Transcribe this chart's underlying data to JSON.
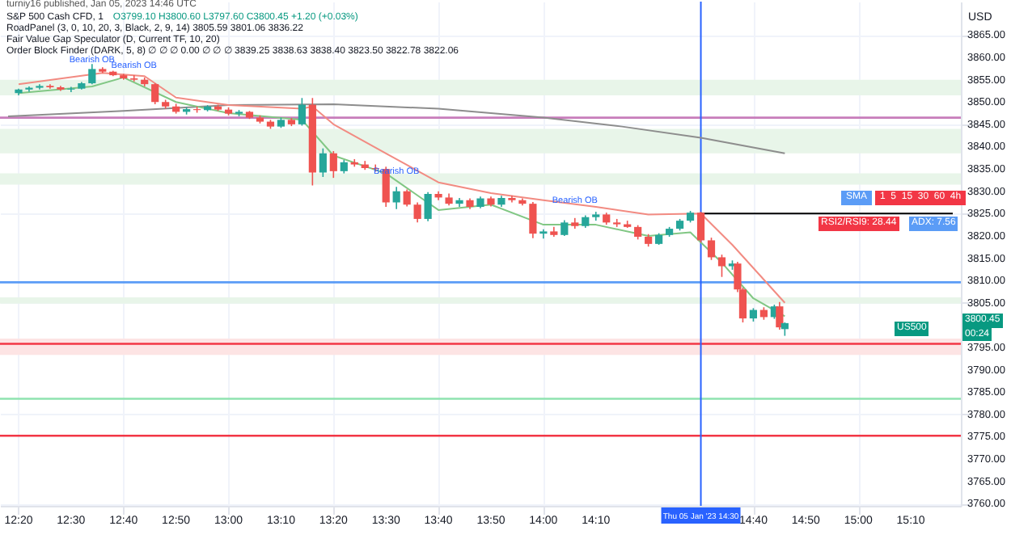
{
  "chart_data": {
    "type": "candlestick",
    "title": "S&P 500 Cash CFD, 1",
    "subtitle": "O3799.10 H3800.60 L3797.60 C3800.45 +1.20 (+0.03%)",
    "ylabel": "USD",
    "annotations": [
      "turniy16 published, Jan 05, 2023 14:46 UTC",
      "RoadPanel (3, 0, 10, 20, 3, Black, 2, 9, 14) 3805.59 3801.06 3836.22",
      "Fair Value Gap Speculator (D, Current TF, 10, 20)",
      "Order Block Finder (DARK, 5, 8) ∅ ∅ ∅ 0.00 ∅ ∅ ∅ 3839.25 3838.63 3838.40 3823.50 3822.78 3822.06",
      "SMA",
      "1  5  15  30  60  4h",
      "RSI2/RSI9: 28.44",
      "ADX: 7.56",
      "US500",
      "3800.45",
      "00:24",
      {
        "text": "Bearish OB",
        "x": "2023-01-05T12:34",
        "y": 3858.6
      },
      {
        "text": "Bearish OB",
        "x": "2023-01-05T12:42",
        "y": 3857.2
      },
      {
        "text": "Bearish OB",
        "x": "2023-01-05T13:32",
        "y": 3833.5
      },
      {
        "text": "Bearish OB",
        "x": "2023-01-05T14:06",
        "y": 3827
      }
    ],
    "x": [
      "2023-01-05T12:20",
      "2023-01-05T12:22",
      "2023-01-05T12:24",
      "2023-01-05T12:26",
      "2023-01-05T12:28",
      "2023-01-05T12:30",
      "2023-01-05T12:32",
      "2023-01-05T12:34",
      "2023-01-05T12:36",
      "2023-01-05T12:38",
      "2023-01-05T12:40",
      "2023-01-05T12:42",
      "2023-01-05T12:44",
      "2023-01-05T12:46",
      "2023-01-05T12:48",
      "2023-01-05T12:50",
      "2023-01-05T12:52",
      "2023-01-05T12:54",
      "2023-01-05T12:56",
      "2023-01-05T12:58",
      "2023-01-05T13:00",
      "2023-01-05T13:02",
      "2023-01-05T13:04",
      "2023-01-05T13:06",
      "2023-01-05T13:08",
      "2023-01-05T13:10",
      "2023-01-05T13:12",
      "2023-01-05T13:14",
      "2023-01-05T13:16",
      "2023-01-05T13:18",
      "2023-01-05T13:20",
      "2023-01-05T13:22",
      "2023-01-05T13:24",
      "2023-01-05T13:26",
      "2023-01-05T13:28",
      "2023-01-05T13:30",
      "2023-01-05T13:32",
      "2023-01-05T13:34",
      "2023-01-05T13:36",
      "2023-01-05T13:38",
      "2023-01-05T13:40",
      "2023-01-05T13:42",
      "2023-01-05T13:44",
      "2023-01-05T13:46",
      "2023-01-05T13:48",
      "2023-01-05T13:50",
      "2023-01-05T13:52",
      "2023-01-05T13:54",
      "2023-01-05T13:56",
      "2023-01-05T13:58",
      "2023-01-05T14:00",
      "2023-01-05T14:02",
      "2023-01-05T14:04",
      "2023-01-05T14:06",
      "2023-01-05T14:08",
      "2023-01-05T14:10",
      "2023-01-05T14:12",
      "2023-01-05T14:14",
      "2023-01-05T14:16",
      "2023-01-05T14:18",
      "2023-01-05T14:20",
      "2023-01-05T14:22",
      "2023-01-05T14:24",
      "2023-01-05T14:26",
      "2023-01-05T14:28",
      "2023-01-05T14:30",
      "2023-01-05T14:32",
      "2023-01-05T14:34",
      "2023-01-05T14:36",
      "2023-01-05T14:37",
      "2023-01-05T14:38",
      "2023-01-05T14:40",
      "2023-01-05T14:42",
      "2023-01-05T14:44",
      "2023-01-05T14:45",
      "2023-01-05T14:46"
    ],
    "ohlc": [
      [
        3852,
        3853,
        3851.5,
        3852.8
      ],
      [
        3852.8,
        3853.5,
        3852.3,
        3853.2
      ],
      [
        3853.2,
        3854,
        3852.8,
        3853.6
      ],
      [
        3853.6,
        3854,
        3853,
        3853.3
      ],
      [
        3853.3,
        3853.6,
        3852.5,
        3852.8
      ],
      [
        3852.8,
        3853.4,
        3852.2,
        3853
      ],
      [
        3853,
        3854.5,
        3852.8,
        3854.2
      ],
      [
        3854.2,
        3858.5,
        3854,
        3857.4
      ],
      [
        3857.4,
        3857.8,
        3856.5,
        3856.8
      ],
      [
        3856.8,
        3857,
        3855.8,
        3856
      ],
      [
        3856,
        3856.3,
        3855,
        3855.3
      ],
      [
        3855.3,
        3856,
        3854.6,
        3855
      ],
      [
        3855,
        3855.5,
        3853.5,
        3854
      ],
      [
        3854,
        3854.2,
        3849.5,
        3850
      ],
      [
        3850,
        3850.5,
        3848.5,
        3849
      ],
      [
        3849,
        3849.6,
        3847.4,
        3847.8
      ],
      [
        3847.8,
        3848.8,
        3847.2,
        3848.4
      ],
      [
        3848.4,
        3849,
        3847.6,
        3848.2
      ],
      [
        3848.2,
        3849.3,
        3847.9,
        3849
      ],
      [
        3849,
        3849.4,
        3848,
        3848.3
      ],
      [
        3848.3,
        3848.8,
        3847,
        3847.4
      ],
      [
        3847.4,
        3848.2,
        3846.8,
        3847.8
      ],
      [
        3847.8,
        3848,
        3846.2,
        3846.5
      ],
      [
        3846.5,
        3847,
        3845.2,
        3845.6
      ],
      [
        3845.6,
        3846,
        3844,
        3844.5
      ],
      [
        3844.5,
        3846.5,
        3844.2,
        3846
      ],
      [
        3846,
        3846.4,
        3844.6,
        3845
      ],
      [
        3845,
        3850.9,
        3844.7,
        3849.4
      ],
      [
        3849.4,
        3850.9,
        3831.3,
        3834.2
      ],
      [
        3834.2,
        3839.6,
        3833.2,
        3838.5
      ],
      [
        3838.5,
        3839,
        3833,
        3834.5
      ],
      [
        3834.5,
        3837,
        3834,
        3836.5
      ],
      [
        3836.5,
        3837.2,
        3835.5,
        3836
      ],
      [
        3836,
        3836.8,
        3834.8,
        3835.2
      ],
      [
        3835.2,
        3836,
        3834.4,
        3835
      ],
      [
        3835,
        3835.5,
        3826.5,
        3827.5
      ],
      [
        3827.5,
        3831,
        3826,
        3830
      ],
      [
        3830,
        3830.4,
        3826.6,
        3827
      ],
      [
        3827,
        3827.5,
        3823,
        3823.8
      ],
      [
        3823.8,
        3829.8,
        3823.3,
        3829.4
      ],
      [
        3829.4,
        3830,
        3828,
        3828.6
      ],
      [
        3828.6,
        3829.5,
        3826.8,
        3827.2
      ],
      [
        3827.2,
        3828.5,
        3826.5,
        3828
      ],
      [
        3828,
        3828.4,
        3826,
        3826.5
      ],
      [
        3826.5,
        3828.8,
        3826.2,
        3828.4
      ],
      [
        3828.4,
        3828.8,
        3826.6,
        3827
      ],
      [
        3827,
        3829,
        3826.5,
        3828.5
      ],
      [
        3828.5,
        3829,
        3827.5,
        3828
      ],
      [
        3828,
        3828.4,
        3826.8,
        3827.2
      ],
      [
        3827.2,
        3827.6,
        3819.5,
        3820.5
      ],
      [
        3820.5,
        3821.5,
        3819.4,
        3821
      ],
      [
        3821,
        3822,
        3819.8,
        3820.2
      ],
      [
        3820.2,
        3823.5,
        3820,
        3823
      ],
      [
        3823,
        3824,
        3821.6,
        3822.2
      ],
      [
        3822.2,
        3824.6,
        3821.8,
        3824.2
      ],
      [
        3824.2,
        3825.4,
        3823.4,
        3824.8
      ],
      [
        3824.8,
        3825.2,
        3822.5,
        3823
      ],
      [
        3823,
        3823.8,
        3822,
        3822.6
      ],
      [
        3822.6,
        3823.4,
        3821.8,
        3822
      ],
      [
        3822,
        3822.4,
        3819.2,
        3819.8
      ],
      [
        3819.8,
        3820.4,
        3817.6,
        3818.2
      ],
      [
        3818.2,
        3820.6,
        3818,
        3820.2
      ],
      [
        3820.2,
        3822,
        3819.8,
        3821.6
      ],
      [
        3821.6,
        3823.8,
        3821.2,
        3823.4
      ],
      [
        3823.4,
        3825.6,
        3823,
        3825.2
      ],
      [
        3825.2,
        3825.4,
        3818.5,
        3819
      ],
      [
        3819,
        3819.6,
        3814.6,
        3815.2
      ],
      [
        3815.2,
        3815.8,
        3810.8,
        3813.2
      ],
      [
        3813.2,
        3814.5,
        3812.4,
        3813.8
      ],
      [
        3813.8,
        3814.2,
        3807.4,
        3808
      ],
      [
        3808,
        3808.4,
        3800.6,
        3801.5
      ],
      [
        3801.5,
        3803.8,
        3800.8,
        3803.4
      ],
      [
        3803.4,
        3804,
        3801.2,
        3801.8
      ],
      [
        3801.8,
        3804.6,
        3801.4,
        3804.2
      ],
      [
        3804.2,
        3805.2,
        3799,
        3799.5
      ],
      [
        3799.1,
        3800.6,
        3797.6,
        3800.45
      ]
    ],
    "colors": [
      "#26a69a",
      "#26a69a",
      "#26a69a",
      "#ef5350",
      "#ef5350",
      "#26a69a",
      "#26a69a",
      "#26a69a",
      "#ef5350",
      "#ef5350",
      "#ef5350",
      "#ef5350",
      "#ef5350",
      "#ef5350",
      "#ef5350",
      "#ef5350",
      "#26a69a",
      "#ef5350",
      "#26a69a",
      "#ef5350",
      "#ef5350",
      "#26a69a",
      "#ef5350",
      "#ef5350",
      "#ef5350",
      "#26a69a",
      "#ef5350",
      "#26a69a",
      "#ef5350",
      "#26a69a",
      "#ef5350",
      "#26a69a",
      "#ef5350",
      "#ef5350",
      "#ef5350",
      "#ef5350",
      "#26a69a",
      "#ef5350",
      "#ef5350",
      "#26a69a",
      "#ef5350",
      "#ef5350",
      "#26a69a",
      "#ef5350",
      "#26a69a",
      "#ef5350",
      "#26a69a",
      "#ef5350",
      "#ef5350",
      "#ef5350",
      "#26a69a",
      "#ef5350",
      "#26a69a",
      "#ef5350",
      "#26a69a",
      "#26a69a",
      "#ef5350",
      "#ef5350",
      "#ef5350",
      "#ef5350",
      "#ef5350",
      "#26a69a",
      "#26a69a",
      "#26a69a",
      "#26a69a",
      "#ef5350",
      "#ef5350",
      "#ef5350",
      "#26a69a",
      "#ef5350",
      "#ef5350",
      "#26a69a",
      "#ef5350",
      "#26a69a",
      "#ef5350",
      "#26a69a"
    ],
    "series": [
      {
        "type": "line",
        "color": "#8d8d8d",
        "x": [
          "2023-01-05T12:18",
          "2023-01-05T12:40",
          "2023-01-05T13:00",
          "2023-01-05T13:20",
          "2023-01-05T13:40",
          "2023-01-05T14:00",
          "2023-01-05T14:15",
          "2023-01-05T14:30",
          "2023-01-05T14:46"
        ],
        "values": [
          3846.8,
          3848,
          3849.3,
          3849.5,
          3848.5,
          3846.5,
          3844.5,
          3842,
          3838.5
        ]
      },
      {
        "type": "line",
        "color": "#f28b82",
        "x": [
          "2023-01-05T12:20",
          "2023-01-05T12:36",
          "2023-01-05T12:44",
          "2023-01-05T12:50",
          "2023-01-05T13:00",
          "2023-01-05T13:14",
          "2023-01-05T13:16",
          "2023-01-05T13:20",
          "2023-01-05T13:30",
          "2023-01-05T13:40",
          "2023-01-05T13:50",
          "2023-01-05T14:00",
          "2023-01-05T14:10",
          "2023-01-05T14:20",
          "2023-01-05T14:30",
          "2023-01-05T14:36",
          "2023-01-05T14:46"
        ],
        "values": [
          3854,
          3856.5,
          3855.8,
          3851,
          3849.3,
          3848.5,
          3849,
          3845,
          3838.5,
          3832,
          3829.6,
          3828,
          3826.5,
          3824.8,
          3825,
          3818,
          3805
        ]
      },
      {
        "type": "line",
        "color": "#81c784",
        "x": [
          "2023-01-05T12:20",
          "2023-01-05T12:34",
          "2023-01-05T12:40",
          "2023-01-05T12:50",
          "2023-01-05T13:00",
          "2023-01-05T13:14",
          "2023-01-05T13:20",
          "2023-01-05T13:30",
          "2023-01-05T13:40",
          "2023-01-05T13:50",
          "2023-01-05T14:00",
          "2023-01-05T14:10",
          "2023-01-05T14:20",
          "2023-01-05T14:28",
          "2023-01-05T14:34",
          "2023-01-05T14:40",
          "2023-01-05T14:46"
        ],
        "values": [
          3852,
          3853.5,
          3855.5,
          3850,
          3847.5,
          3846,
          3838,
          3834,
          3825.8,
          3827,
          3822.5,
          3822.5,
          3820,
          3820.8,
          3814,
          3806,
          3802
        ]
      },
      {
        "type": "line",
        "color": "#000000",
        "x": [
          "2023-01-05T14:30",
          "2023-01-05T15:18"
        ],
        "values": [
          3825,
          3825
        ]
      }
    ],
    "ref_lines": [
      {
        "axis": "y",
        "value": 3846.5,
        "color": "#c77dbb"
      },
      {
        "axis": "y",
        "value": 3809.6,
        "color": "#5b9cf6"
      },
      {
        "axis": "y",
        "value": 3795.8,
        "color": "#f23645"
      },
      {
        "axis": "y",
        "value": 3783.5,
        "color": "#8fe3b0"
      },
      {
        "axis": "y",
        "value": 3775.2,
        "color": "#f23645"
      },
      {
        "axis": "x",
        "value": "2023-01-05T14:30",
        "label": "Thu 05 Jan '23  14:30",
        "color": "#2962ff"
      }
    ],
    "bands": [
      {
        "axis": "y",
        "from": 3851.5,
        "to": 3855,
        "color": "#e8f5e9"
      },
      {
        "axis": "y",
        "from": 3838.5,
        "to": 3844,
        "color": "#e8f5e9"
      },
      {
        "axis": "y",
        "from": 3831.5,
        "to": 3834,
        "color": "#e8f5e9"
      },
      {
        "axis": "y",
        "from": 3804.8,
        "to": 3806.2,
        "color": "#e8f5e9"
      },
      {
        "axis": "y",
        "from": 3793.3,
        "to": 3797,
        "color": "#fde4e4"
      }
    ],
    "xlim": [
      "2023-01-05T12:18",
      "2023-01-05T15:18"
    ],
    "xticks": [
      {
        "value": "2023-01-05T12:20",
        "label": "12:20"
      },
      {
        "value": "2023-01-05T12:30",
        "label": "12:30"
      },
      {
        "value": "2023-01-05T12:40",
        "label": "12:40"
      },
      {
        "value": "2023-01-05T12:50",
        "label": "12:50"
      },
      {
        "value": "2023-01-05T13:00",
        "label": "13:00"
      },
      {
        "value": "2023-01-05T13:10",
        "label": "13:10"
      },
      {
        "value": "2023-01-05T13:20",
        "label": "13:20"
      },
      {
        "value": "2023-01-05T13:30",
        "label": "13:30"
      },
      {
        "value": "2023-01-05T13:40",
        "label": "13:40"
      },
      {
        "value": "2023-01-05T13:50",
        "label": "13:50"
      },
      {
        "value": "2023-01-05T14:00",
        "label": "14:00"
      },
      {
        "value": "2023-01-05T14:10",
        "label": "14:10"
      },
      {
        "value": "2023-01-05T14:40",
        "label": "14:40"
      },
      {
        "value": "2023-01-05T14:50",
        "label": "14:50"
      },
      {
        "value": "2023-01-05T15:00",
        "label": "15:00"
      },
      {
        "value": "2023-01-05T15:10",
        "label": "15:10"
      }
    ],
    "ylim": [
      3759.5,
      3872.5
    ],
    "yticks": [
      {
        "value": 3760,
        "label": "3760.00"
      },
      {
        "value": 3765,
        "label": "3765.00"
      },
      {
        "value": 3770,
        "label": "3770.00"
      },
      {
        "value": 3775,
        "label": "3775.00"
      },
      {
        "value": 3780,
        "label": "3780.00"
      },
      {
        "value": 3785,
        "label": "3785.00"
      },
      {
        "value": 3790,
        "label": "3790.00"
      },
      {
        "value": 3795,
        "label": "3795.00"
      },
      {
        "value": 3805,
        "label": "3805.00"
      },
      {
        "value": 3810,
        "label": "3810.00"
      },
      {
        "value": 3815,
        "label": "3815.00"
      },
      {
        "value": 3820,
        "label": "3820.00"
      },
      {
        "value": 3825,
        "label": "3825.00"
      },
      {
        "value": 3830,
        "label": "3830.00"
      },
      {
        "value": 3835,
        "label": "3835.00"
      },
      {
        "value": 3840,
        "label": "3840.00"
      },
      {
        "value": 3845,
        "label": "3845.00"
      },
      {
        "value": 3850,
        "label": "3850.00"
      },
      {
        "value": 3855,
        "label": "3855.00"
      },
      {
        "value": 3860,
        "label": "3860.00"
      },
      {
        "value": 3865,
        "label": "3865.00"
      }
    ],
    "grid": true
  }
}
